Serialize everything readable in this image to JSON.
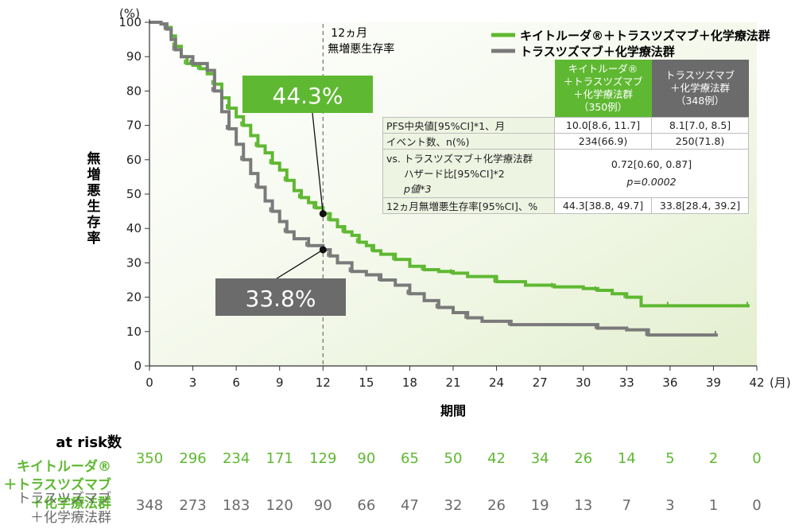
{
  "chart_data": {
    "type": "line",
    "xlabel": "期間",
    "x_unit": "(月)",
    "ylabel": "無増悪生存率",
    "y_unit": "(%)",
    "xlim": [
      0,
      42
    ],
    "ylim": [
      0,
      100
    ],
    "xticks": [
      0,
      3,
      6,
      9,
      12,
      15,
      18,
      21,
      24,
      27,
      30,
      33,
      36,
      39,
      42
    ],
    "yticks": [
      0,
      10,
      20,
      30,
      40,
      50,
      60,
      70,
      80,
      90,
      100
    ],
    "reference_line": {
      "x": 12,
      "label_line1": "12ヵ月",
      "label_line2": "無増悪生存率"
    },
    "series": [
      {
        "name": "キイトルーダ®＋トラスツズマブ＋化学療法群",
        "color": "#5fb832",
        "points": [
          [
            0,
            100
          ],
          [
            0.8,
            99.5
          ],
          [
            1.2,
            98.5
          ],
          [
            1.5,
            96
          ],
          [
            1.8,
            93
          ],
          [
            2.2,
            90
          ],
          [
            2.6,
            88
          ],
          [
            3,
            87.5
          ],
          [
            3.5,
            86.5
          ],
          [
            4,
            85
          ],
          [
            4.5,
            82
          ],
          [
            5,
            78
          ],
          [
            5.5,
            75
          ],
          [
            6,
            72.5
          ],
          [
            6.5,
            70
          ],
          [
            7,
            67
          ],
          [
            7.5,
            64
          ],
          [
            8,
            62
          ],
          [
            8.5,
            59
          ],
          [
            9,
            57
          ],
          [
            9.5,
            54
          ],
          [
            10,
            51
          ],
          [
            10.5,
            49
          ],
          [
            11,
            47.5
          ],
          [
            11.5,
            46
          ],
          [
            12,
            44.3
          ],
          [
            12.5,
            42.5
          ],
          [
            13,
            40.5
          ],
          [
            13.5,
            39
          ],
          [
            14,
            38
          ],
          [
            14.5,
            36
          ],
          [
            15,
            35
          ],
          [
            15.5,
            33.5
          ],
          [
            16,
            32.5
          ],
          [
            17,
            31
          ],
          [
            18,
            29
          ],
          [
            19,
            28
          ],
          [
            20,
            27.5
          ],
          [
            21,
            27
          ],
          [
            22,
            26
          ],
          [
            24,
            24.5
          ],
          [
            26,
            23.5
          ],
          [
            28,
            23
          ],
          [
            30,
            22.5
          ],
          [
            31,
            22
          ],
          [
            32,
            21
          ],
          [
            33,
            20
          ],
          [
            34,
            17.5
          ],
          [
            36,
            17.5
          ],
          [
            38,
            17.5
          ],
          [
            41.5,
            17.5
          ]
        ]
      },
      {
        "name": "トラスツズマブ＋化学療法群",
        "color": "#7a7a7a",
        "points": [
          [
            0,
            100
          ],
          [
            0.8,
            99.5
          ],
          [
            1.2,
            98
          ],
          [
            1.5,
            95
          ],
          [
            1.8,
            92
          ],
          [
            2.2,
            90
          ],
          [
            3,
            88
          ],
          [
            4,
            86
          ],
          [
            4.5,
            80
          ],
          [
            5,
            74
          ],
          [
            5.5,
            69
          ],
          [
            6,
            64.5
          ],
          [
            6.5,
            60
          ],
          [
            7,
            56
          ],
          [
            7.5,
            52
          ],
          [
            8,
            48
          ],
          [
            8.5,
            45
          ],
          [
            9,
            42
          ],
          [
            9.5,
            39
          ],
          [
            10,
            37
          ],
          [
            11,
            35
          ],
          [
            12,
            33.8
          ],
          [
            12.5,
            32
          ],
          [
            13,
            30
          ],
          [
            14,
            27.5
          ],
          [
            15,
            26.5
          ],
          [
            16,
            25
          ],
          [
            17,
            23.5
          ],
          [
            18,
            21
          ],
          [
            19,
            19
          ],
          [
            20,
            17
          ],
          [
            21,
            15.5
          ],
          [
            22,
            14
          ],
          [
            23,
            13
          ],
          [
            25,
            12
          ],
          [
            28,
            12
          ],
          [
            31,
            11
          ],
          [
            33,
            10.5
          ],
          [
            34.5,
            9
          ],
          [
            37,
            9
          ],
          [
            39.3,
            9
          ]
        ]
      }
    ],
    "legend": {
      "placement": "top-right",
      "entries": [
        "キイトルーダ®＋トラスツズマブ＋化学療法群",
        "トラスツズマブ＋化学療法群"
      ]
    },
    "annotations": [
      {
        "text": "44.3%",
        "x": 12,
        "y": 44.3,
        "color": "#5fb832"
      },
      {
        "text": "33.8%",
        "x": 12,
        "y": 33.8,
        "color": "#6b6b6b"
      }
    ],
    "at_risk": {
      "title": "at risk数",
      "keytruda_label": [
        "キイトルーダ®",
        "＋トラスツズマブ",
        "＋化学療法群"
      ],
      "trastuzumab_label": [
        "トラスツズマブ",
        "＋化学療法群"
      ],
      "keytruda": [
        "350",
        "296",
        "234",
        "171",
        "129",
        "90",
        "65",
        "50",
        "42",
        "34",
        "26",
        "14",
        "5",
        "2",
        "0"
      ],
      "trastuzumab": [
        "348",
        "273",
        "183",
        "120",
        "90",
        "66",
        "47",
        "32",
        "26",
        "19",
        "13",
        "7",
        "3",
        "1",
        "0"
      ]
    }
  },
  "table": {
    "header_keytruda": [
      "キイトルーダ®",
      "＋トラスツズマブ",
      "＋化学療法群",
      "（350例）"
    ],
    "header_trastuzumab": [
      "トラスツズマブ",
      "＋化学療法群",
      "（348例）"
    ],
    "rows": [
      {
        "label": "PFS中央値[95%CI]*1、月",
        "keytruda": "10.0[8.6, 11.7]",
        "trastuzumab": "8.1[7.0, 8.5]"
      },
      {
        "label": "イベント数、n(%)",
        "keytruda": "234(66.9)",
        "trastuzumab": "250(71.8)"
      }
    ],
    "hr_label": [
      "vs. トラスツズマブ＋化学療法群",
      "ハザード比[95%CI]*2",
      "p値*3"
    ],
    "hr_value": "0.72[0.60, 0.87]",
    "p_value": "p=0.0002",
    "rate_row": {
      "label": "12ヵ月無増悪生存率[95%CI]、%",
      "keytruda": "44.3[38.8, 49.7]",
      "trastuzumab": "33.8[28.4, 39.2]"
    }
  }
}
